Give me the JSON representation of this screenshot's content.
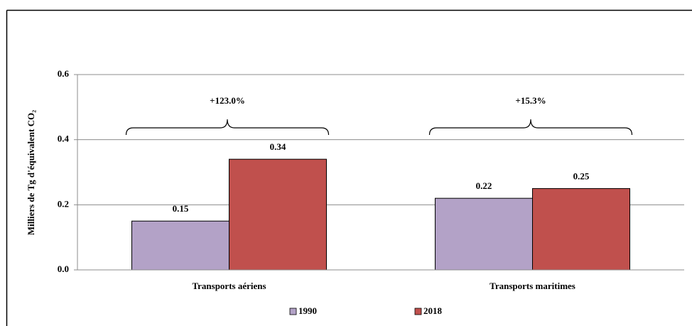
{
  "chart_data": {
    "type": "bar",
    "y_label": "Milliers de Tg d'équivalent CO₂",
    "categories": [
      "Transports aériens",
      "Transports maritimes"
    ],
    "series": [
      {
        "name": "1990",
        "color": "#b3a2c7",
        "values": [
          0.15,
          0.22
        ]
      },
      {
        "name": "2018",
        "color": "#c0504d",
        "values": [
          0.34,
          0.25
        ]
      }
    ],
    "annotations": [
      "+123.0%",
      "+15.3%"
    ],
    "ylim": [
      0,
      0.6
    ],
    "yticks": [
      {
        "value": 0,
        "label": "0.0"
      },
      0.2,
      0.4,
      0.6
    ],
    "grid": true,
    "legend": "bottom"
  }
}
